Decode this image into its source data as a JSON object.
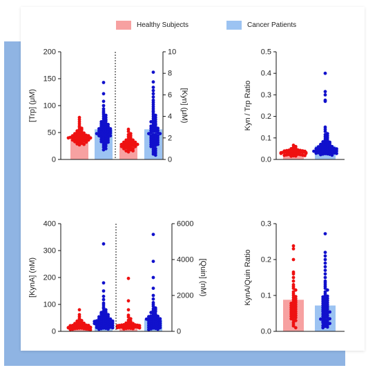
{
  "legend": [
    {
      "label": "Healthy Subjects",
      "color": "#f7a1a1"
    },
    {
      "label": "Cancer Patients",
      "color": "#9cc3f2"
    }
  ],
  "colors": {
    "healthy_bar": "#f7a1a1",
    "healthy_dot": "#ee1111",
    "cancer_bar": "#9cc3f2",
    "cancer_dot": "#1111cc"
  },
  "chart_data": [
    {
      "type": "scatter",
      "left_axis": {
        "label": "[Trp] (μM)",
        "ylim": [
          0,
          200
        ],
        "ticks": [
          0,
          50,
          100,
          150,
          200
        ]
      },
      "right_axis": {
        "label": "[Kyn] (μM)",
        "ylim": [
          0,
          10
        ],
        "ticks": [
          0,
          2,
          4,
          6,
          8,
          10
        ]
      },
      "groups": [
        {
          "series": "Healthy Subjects",
          "axis": "left",
          "mean": 42,
          "values": [
            78,
            74,
            70,
            66,
            62,
            60,
            58,
            56,
            55,
            53,
            52,
            51,
            50,
            49,
            48,
            47,
            47,
            46,
            46,
            45,
            45,
            44,
            44,
            43,
            43,
            43,
            42,
            42,
            42,
            41,
            41,
            41,
            40,
            40,
            40,
            39,
            39,
            38,
            38,
            37,
            37,
            36,
            36,
            35,
            35,
            34,
            34,
            33,
            32,
            31,
            30,
            29,
            28,
            27
          ]
        },
        {
          "series": "Cancer Patients",
          "axis": "left",
          "mean": 56,
          "values": [
            143,
            122,
            108,
            100,
            94,
            90,
            87,
            84,
            82,
            80,
            78,
            76,
            74,
            72,
            71,
            70,
            68,
            67,
            66,
            65,
            64,
            63,
            62,
            61,
            60,
            60,
            59,
            58,
            57,
            57,
            56,
            55,
            55,
            54,
            53,
            53,
            52,
            51,
            51,
            50,
            49,
            49,
            48,
            47,
            47,
            46,
            45,
            44,
            44,
            43,
            42,
            41,
            40,
            39,
            38,
            37,
            36,
            35,
            34,
            33,
            32,
            31,
            29,
            27,
            25,
            23,
            20,
            18
          ]
        },
        {
          "series": "Healthy Subjects",
          "axis": "right",
          "mean": 1.5,
          "values": [
            2.8,
            2.6,
            2.4,
            2.3,
            2.2,
            2.1,
            2.0,
            1.9,
            1.9,
            1.8,
            1.8,
            1.7,
            1.7,
            1.7,
            1.6,
            1.6,
            1.6,
            1.5,
            1.5,
            1.5,
            1.5,
            1.4,
            1.4,
            1.4,
            1.4,
            1.3,
            1.3,
            1.3,
            1.3,
            1.2,
            1.2,
            1.2,
            1.1,
            1.1,
            1.1,
            1.0,
            1.0,
            0.9,
            0.9,
            0.8,
            0.8,
            0.7
          ]
        },
        {
          "series": "Cancer Patients",
          "axis": "right",
          "mean": 2.8,
          "values": [
            8.1,
            7.2,
            6.7,
            6.4,
            6.1,
            5.8,
            5.5,
            5.3,
            5.1,
            4.9,
            4.7,
            4.5,
            4.4,
            4.2,
            4.1,
            4.0,
            3.9,
            3.8,
            3.7,
            3.6,
            3.5,
            3.5,
            3.4,
            3.3,
            3.2,
            3.2,
            3.1,
            3.0,
            3.0,
            2.9,
            2.9,
            2.8,
            2.8,
            2.7,
            2.7,
            2.6,
            2.6,
            2.5,
            2.5,
            2.4,
            2.4,
            2.3,
            2.3,
            2.2,
            2.2,
            2.1,
            2.1,
            2.0,
            2.0,
            1.9,
            1.9,
            1.8,
            1.8,
            1.7,
            1.7,
            1.6,
            1.6,
            1.5,
            1.5,
            1.4,
            1.4,
            1.3,
            1.3,
            1.2,
            1.1,
            1.0,
            0.9,
            0.8,
            0.7,
            0.6,
            0.5,
            0.4
          ]
        }
      ]
    },
    {
      "type": "scatter",
      "left_axis": {
        "label": "Kyn / Trp Ratio",
        "ylim": [
          0,
          0.5
        ],
        "ticks": [
          0.0,
          0.1,
          0.2,
          0.3,
          0.4,
          0.5
        ]
      },
      "groups": [
        {
          "series": "Healthy Subjects",
          "axis": "left",
          "mean": 0.034,
          "values": [
            0.066,
            0.06,
            0.056,
            0.052,
            0.05,
            0.048,
            0.046,
            0.045,
            0.044,
            0.043,
            0.042,
            0.041,
            0.04,
            0.039,
            0.038,
            0.037,
            0.037,
            0.036,
            0.036,
            0.035,
            0.035,
            0.034,
            0.034,
            0.033,
            0.033,
            0.032,
            0.032,
            0.031,
            0.031,
            0.03,
            0.03,
            0.029,
            0.029,
            0.028,
            0.028,
            0.027,
            0.026,
            0.025,
            0.024,
            0.023,
            0.022,
            0.021,
            0.02,
            0.019,
            0.018,
            0.017,
            0.016,
            0.015
          ]
        },
        {
          "series": "Cancer Patients",
          "axis": "left",
          "mean": 0.063,
          "values": [
            0.4,
            0.315,
            0.3,
            0.275,
            0.27,
            0.15,
            0.14,
            0.13,
            0.12,
            0.115,
            0.11,
            0.105,
            0.1,
            0.095,
            0.09,
            0.088,
            0.085,
            0.082,
            0.08,
            0.078,
            0.076,
            0.074,
            0.072,
            0.07,
            0.068,
            0.066,
            0.065,
            0.064,
            0.062,
            0.06,
            0.059,
            0.058,
            0.057,
            0.056,
            0.055,
            0.054,
            0.053,
            0.052,
            0.051,
            0.05,
            0.049,
            0.048,
            0.047,
            0.046,
            0.045,
            0.044,
            0.043,
            0.042,
            0.041,
            0.04,
            0.039,
            0.038,
            0.037,
            0.036,
            0.035,
            0.034,
            0.033,
            0.032,
            0.031,
            0.03,
            0.029,
            0.028,
            0.027,
            0.026,
            0.025,
            0.024,
            0.022,
            0.02
          ]
        }
      ]
    },
    {
      "type": "scatter",
      "left_axis": {
        "label": "[KynA] (nM)",
        "ylim": [
          0,
          400
        ],
        "ticks": [
          0,
          100,
          200,
          300,
          400
        ]
      },
      "right_axis": {
        "label": "[Quin] (nM)",
        "ylim": [
          0,
          6000
        ],
        "ticks": [
          0,
          2000,
          4000,
          6000
        ]
      },
      "groups": [
        {
          "series": "Healthy Subjects",
          "axis": "left",
          "mean": 22,
          "values": [
            80,
            62,
            55,
            48,
            44,
            40,
            38,
            36,
            34,
            32,
            30,
            29,
            28,
            27,
            26,
            25,
            24,
            23,
            22,
            22,
            21,
            20,
            20,
            19,
            18,
            18,
            17,
            16,
            16,
            15,
            15,
            14,
            14,
            13,
            12,
            12,
            11,
            10,
            10,
            9,
            8,
            8,
            7,
            6
          ]
        },
        {
          "series": "Cancer Patients",
          "axis": "left",
          "mean": 44,
          "values": [
            325,
            180,
            150,
            130,
            118,
            105,
            98,
            90,
            85,
            80,
            75,
            72,
            70,
            68,
            66,
            64,
            62,
            60,
            58,
            56,
            55,
            54,
            52,
            50,
            49,
            48,
            47,
            46,
            45,
            44,
            43,
            42,
            41,
            40,
            39,
            38,
            37,
            36,
            35,
            34,
            33,
            32,
            31,
            30,
            30,
            29,
            28,
            27,
            26,
            25,
            24,
            23,
            22,
            21,
            20,
            19,
            18,
            17,
            16,
            15,
            14,
            13,
            12,
            11,
            10,
            9,
            8
          ]
        },
        {
          "series": "Healthy Subjects",
          "axis": "right",
          "mean": 330,
          "values": [
            2950,
            1700,
            1200,
            900,
            800,
            700,
            620,
            560,
            520,
            480,
            460,
            440,
            420,
            400,
            390,
            380,
            370,
            360,
            350,
            340,
            330,
            320,
            310,
            300,
            290,
            280,
            270,
            260,
            250,
            240,
            230,
            220,
            210,
            200,
            190,
            180,
            170,
            160,
            150,
            140
          ]
        },
        {
          "series": "Cancer Patients",
          "axis": "right",
          "mean": 650,
          "values": [
            5400,
            3900,
            3000,
            2400,
            2000,
            1800,
            1600,
            1500,
            1400,
            1300,
            1250,
            1200,
            1150,
            1100,
            1050,
            1000,
            950,
            900,
            880,
            860,
            840,
            820,
            800,
            780,
            760,
            740,
            720,
            700,
            680,
            660,
            640,
            620,
            600,
            580,
            560,
            540,
            520,
            500,
            480,
            460,
            440,
            420,
            400,
            380,
            360,
            340,
            320,
            300,
            280,
            260,
            240,
            220,
            200,
            180,
            160,
            140,
            120,
            100
          ]
        }
      ]
    },
    {
      "type": "scatter",
      "left_axis": {
        "label": "KynA/Quin Ratio",
        "ylim": [
          0,
          0.3
        ],
        "ticks": [
          0.0,
          0.1,
          0.2,
          0.3
        ]
      },
      "groups": [
        {
          "series": "Healthy Subjects",
          "axis": "left",
          "mean": 0.088,
          "values": [
            0.238,
            0.23,
            0.2,
            0.165,
            0.16,
            0.15,
            0.14,
            0.13,
            0.125,
            0.12,
            0.115,
            0.11,
            0.105,
            0.1,
            0.097,
            0.094,
            0.091,
            0.088,
            0.085,
            0.082,
            0.08,
            0.078,
            0.076,
            0.074,
            0.072,
            0.07,
            0.068,
            0.066,
            0.064,
            0.062,
            0.06,
            0.058,
            0.056,
            0.054,
            0.052,
            0.05,
            0.048,
            0.046,
            0.044,
            0.042,
            0.04,
            0.038,
            0.035,
            0.032,
            0.03,
            0.025,
            0.02,
            0.015,
            0.01
          ]
        },
        {
          "series": "Cancer Patients",
          "axis": "left",
          "mean": 0.072,
          "values": [
            0.272,
            0.22,
            0.21,
            0.2,
            0.19,
            0.18,
            0.17,
            0.16,
            0.15,
            0.14,
            0.135,
            0.13,
            0.125,
            0.12,
            0.115,
            0.11,
            0.105,
            0.1,
            0.098,
            0.096,
            0.094,
            0.092,
            0.09,
            0.088,
            0.086,
            0.084,
            0.082,
            0.08,
            0.078,
            0.076,
            0.074,
            0.072,
            0.07,
            0.068,
            0.066,
            0.064,
            0.062,
            0.06,
            0.058,
            0.056,
            0.055,
            0.054,
            0.052,
            0.05,
            0.048,
            0.046,
            0.044,
            0.042,
            0.04,
            0.038,
            0.036,
            0.035,
            0.034,
            0.032,
            0.03,
            0.028,
            0.026,
            0.025,
            0.024,
            0.022,
            0.02,
            0.018,
            0.016,
            0.014,
            0.012,
            0.01
          ]
        }
      ]
    }
  ]
}
